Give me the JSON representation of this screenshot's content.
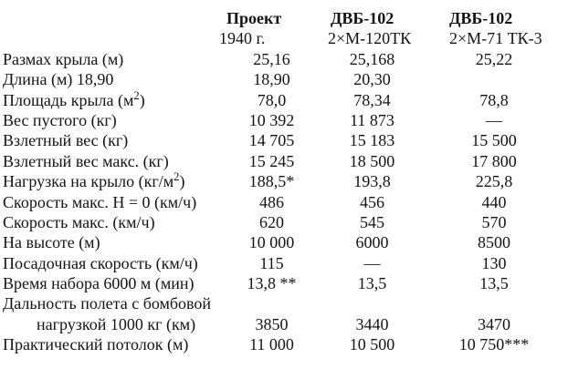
{
  "table": {
    "header": {
      "c1_line1": "Проект",
      "c1_line2": "1940 г.",
      "c2_line1": "ДВБ-102",
      "c2_line2": "2×М-120ТК",
      "c3_line1": "ДВБ-102",
      "c3_line2": "2×М-71 ТК-3"
    },
    "rows": [
      {
        "label": "Размах крыла (м)",
        "v1": "25,16",
        "v2": "25,168",
        "v3": "25,22"
      },
      {
        "label": "Длина (м) 18,90",
        "v1": "18,90",
        "v2": "20,30",
        "v3": ""
      },
      {
        "label_pre": "Площадь крыла (м",
        "label_sup": "2",
        "label_post": ")",
        "v1": "78,0",
        "v2": "78,34",
        "v3": "78,8"
      },
      {
        "label": "Вес пустого (кг)",
        "v1": "10 392",
        "v2": "11 873",
        "v3": "—"
      },
      {
        "label": "Взлетный вес (кг)",
        "v1": "14 705",
        "v2": "15 183",
        "v3": "15 500"
      },
      {
        "label": "Взлетный вес макс. (кг)",
        "v1": "15 245",
        "v2": "18 500",
        "v3": "17 800"
      },
      {
        "label_pre": "Нагрузка на крыло (кг/м",
        "label_sup": "2",
        "label_post": ")",
        "v1": "188,5*",
        "v2": "193,8",
        "v3": "225,8"
      },
      {
        "label": "Скорость макс. Н = 0 (км/ч)",
        "v1": "486",
        "v2": "456",
        "v3": "440"
      },
      {
        "label": "Скорость макс. (км/ч)",
        "v1": "620",
        "v2": "545",
        "v3": "570"
      },
      {
        "label": "На высоте (м)",
        "v1": "10 000",
        "v2": "6000",
        "v3": "8500"
      },
      {
        "label": "Посадочная скорость (км/ч)",
        "v1": "115",
        "v2": "—",
        "v3": "130"
      },
      {
        "label": "Время набора 6000 м (мин)",
        "v1": "13,8 **",
        "v2": "13,5",
        "v3": "13,5"
      },
      {
        "label": "Дальность полета с бомбовой",
        "v1": "",
        "v2": "",
        "v3": ""
      },
      {
        "label": "нагрузкой 1000 кг (км)",
        "v1": "3850",
        "v2": "3440",
        "v3": "3470"
      },
      {
        "label": "Практический потолок (м)",
        "v1": "11 000",
        "v2": "10 500",
        "v3": "10 750***"
      }
    ]
  }
}
